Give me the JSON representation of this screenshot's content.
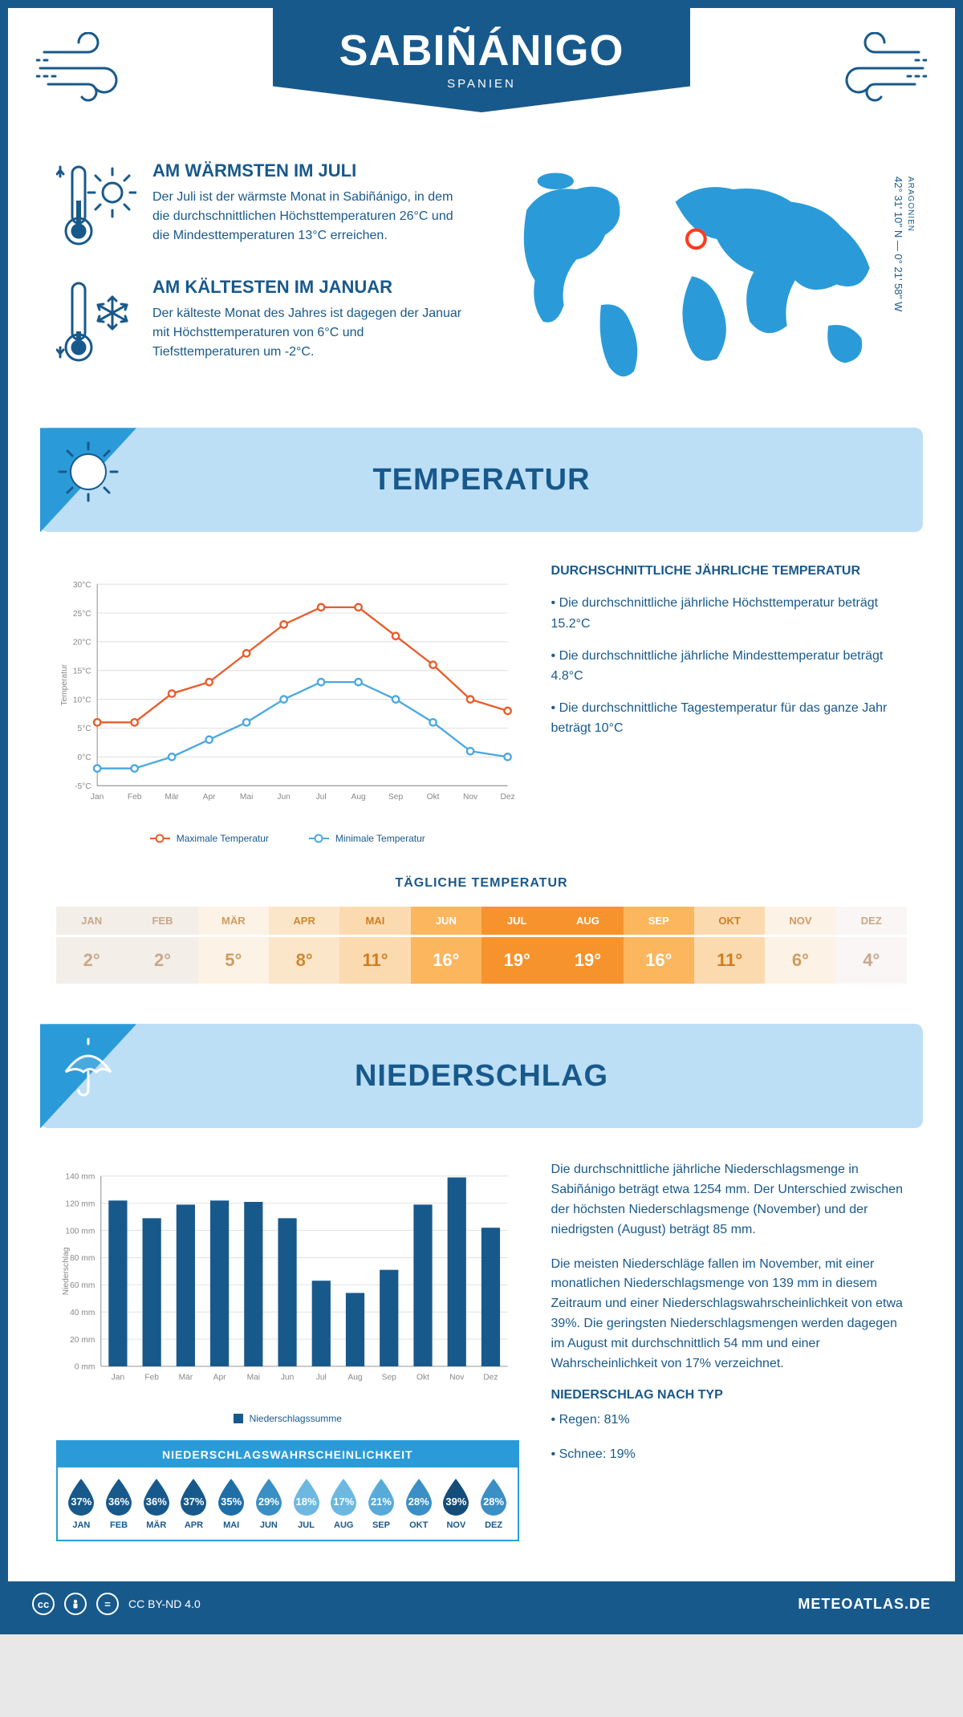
{
  "header": {
    "city": "SABIÑÁNIGO",
    "country": "SPANIEN"
  },
  "coords": {
    "region": "ARAGONIEN",
    "lat_lon": "42° 31' 10'' N — 0° 21' 58'' W"
  },
  "fact_warm": {
    "title": "AM WÄRMSTEN IM JULI",
    "text": "Der Juli ist der wärmste Monat in Sabiñánigo, in dem die durchschnittlichen Höchsttemperaturen 26°C und die Mindesttemperaturen 13°C erreichen."
  },
  "fact_cold": {
    "title": "AM KÄLTESTEN IM JANUAR",
    "text": "Der kälteste Monat des Jahres ist dagegen der Januar mit Höchsttemperaturen von 6°C und Tiefsttemperaturen um -2°C."
  },
  "section_temp_title": "TEMPERATUR",
  "temp_chart": {
    "type": "line",
    "months": [
      "Jan",
      "Feb",
      "Mär",
      "Apr",
      "Mai",
      "Jun",
      "Jul",
      "Aug",
      "Sep",
      "Okt",
      "Nov",
      "Dez"
    ],
    "max_series": [
      6,
      6,
      11,
      13,
      18,
      23,
      26,
      26,
      21,
      16,
      10,
      8
    ],
    "min_series": [
      -2,
      -2,
      0,
      3,
      6,
      10,
      13,
      13,
      10,
      6,
      1,
      0
    ],
    "ylim": [
      -5,
      30
    ],
    "ytick_step": 5,
    "y_ticks": [
      "-5°C",
      "0°C",
      "5°C",
      "10°C",
      "15°C",
      "20°C",
      "25°C",
      "30°C"
    ],
    "max_color": "#e85c2b",
    "min_color": "#4aa8e0",
    "grid_color": "#dddddd",
    "axis_color": "#888888",
    "y_label": "Temperatur",
    "legend_max": "Maximale Temperatur",
    "legend_min": "Minimale Temperatur"
  },
  "temp_info": {
    "title": "DURCHSCHNITTLICHE JÄHRLICHE TEMPERATUR",
    "b1": "• Die durchschnittliche jährliche Höchsttemperatur beträgt 15.2°C",
    "b2": "• Die durchschnittliche jährliche Mindesttemperatur beträgt 4.8°C",
    "b3": "• Die durchschnittliche Tagestemperatur für das ganze Jahr beträgt 10°C"
  },
  "daily_temp": {
    "title": "TÄGLICHE TEMPERATUR",
    "months": [
      "JAN",
      "FEB",
      "MÄR",
      "APR",
      "MAI",
      "JUN",
      "JUL",
      "AUG",
      "SEP",
      "OKT",
      "NOV",
      "DEZ"
    ],
    "values": [
      "2°",
      "2°",
      "5°",
      "8°",
      "11°",
      "16°",
      "19°",
      "19°",
      "16°",
      "11°",
      "6°",
      "4°"
    ],
    "colors": [
      "#f4eee9",
      "#f4eee9",
      "#fdf2e6",
      "#fbe6ca",
      "#fcdab0",
      "#fbb65e",
      "#f7932c",
      "#f7932c",
      "#fbb65e",
      "#fcdab0",
      "#fdf2e6",
      "#faf6f5"
    ],
    "text_colors": [
      "#c7a88a",
      "#c7a88a",
      "#d09b5f",
      "#cf8833",
      "#cf7d1f",
      "#ffffff",
      "#ffffff",
      "#ffffff",
      "#ffffff",
      "#cf7d1f",
      "#d09b5f",
      "#c7a88a"
    ]
  },
  "section_precip_title": "NIEDERSCHLAG",
  "precip_chart": {
    "type": "bar",
    "months": [
      "Jan",
      "Feb",
      "Mär",
      "Apr",
      "Mai",
      "Jun",
      "Jul",
      "Aug",
      "Sep",
      "Okt",
      "Nov",
      "Dez"
    ],
    "values": [
      122,
      109,
      119,
      122,
      121,
      109,
      63,
      54,
      71,
      119,
      139,
      102
    ],
    "ylim": [
      0,
      140
    ],
    "ytick_step": 20,
    "y_ticks": [
      "0 mm",
      "20 mm",
      "40 mm",
      "60 mm",
      "80 mm",
      "100 mm",
      "120 mm",
      "140 mm"
    ],
    "bar_color": "#18598c",
    "grid_color": "#dddddd",
    "y_label": "Niederschlag",
    "legend": "Niederschlagssumme"
  },
  "precip_text": {
    "p1": "Die durchschnittliche jährliche Niederschlagsmenge in Sabiñánigo beträgt etwa 1254 mm. Der Unterschied zwischen der höchsten Niederschlagsmenge (November) und der niedrigsten (August) beträgt 85 mm.",
    "p2": "Die meisten Niederschläge fallen im November, mit einer monatlichen Niederschlagsmenge von 139 mm in diesem Zeitraum und einer Niederschlagswahrscheinlichkeit von etwa 39%. Die geringsten Niederschlagsmengen werden dagegen im August mit durchschnittlich 54 mm und einer Wahrscheinlichkeit von 17% verzeichnet.",
    "type_title": "NIEDERSCHLAG NACH TYP",
    "type_rain": "• Regen: 81%",
    "type_snow": "• Schnee: 19%"
  },
  "prob": {
    "title": "NIEDERSCHLAGSWAHRSCHEINLICHKEIT",
    "months": [
      "JAN",
      "FEB",
      "MÄR",
      "APR",
      "MAI",
      "JUN",
      "JUL",
      "AUG",
      "SEP",
      "OKT",
      "NOV",
      "DEZ"
    ],
    "values": [
      "37%",
      "36%",
      "36%",
      "37%",
      "35%",
      "29%",
      "18%",
      "17%",
      "21%",
      "28%",
      "39%",
      "28%"
    ],
    "colors": [
      "#18598c",
      "#18598c",
      "#18598c",
      "#18598c",
      "#1e6fa8",
      "#3a8fc4",
      "#6cb8e1",
      "#6cb8e1",
      "#58abd8",
      "#3a8fc4",
      "#154d7a",
      "#3a8fc4"
    ]
  },
  "footer": {
    "license": "CC BY-ND 4.0",
    "site": "METEOATLAS.DE"
  }
}
